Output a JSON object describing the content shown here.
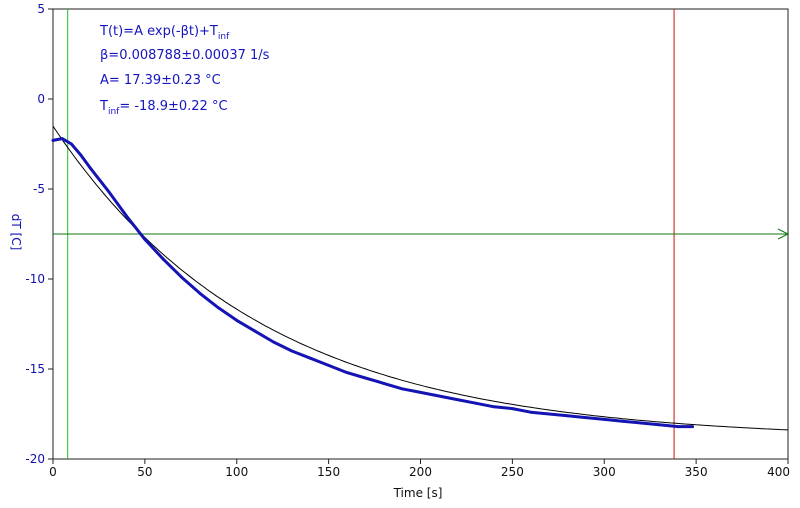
{
  "chart_data": {
    "type": "line",
    "xlabel": "Time [s]",
    "ylabel": "dT [C]",
    "xlim": [
      0,
      400
    ],
    "ylim": [
      -20,
      5
    ],
    "x_ticks": [
      0,
      50,
      100,
      150,
      200,
      250,
      300,
      350,
      400
    ],
    "y_ticks": [
      5,
      0,
      -5,
      -10,
      -15,
      -20
    ],
    "grid": false,
    "legend": "none",
    "annotations": {
      "model_main": "T(t)=A exp(-βt)+T",
      "model_sub": "inf",
      "beta": "β=0.008788±0.00037 1/s",
      "amp": "A= 17.39±0.23 °C",
      "tinf_main": "T",
      "tinf_sub": "inf",
      "tinf_val": "= -18.9±0.22 °C"
    },
    "fit": {
      "A": 17.39,
      "beta": 0.008788,
      "T_inf": -18.9
    },
    "series": [
      {
        "kind": "measured",
        "color": "#1414b4",
        "x": [
          0,
          5,
          10,
          15,
          20,
          30,
          40,
          50,
          60,
          70,
          80,
          90,
          100,
          110,
          120,
          130,
          140,
          150,
          160,
          170,
          180,
          190,
          200,
          210,
          220,
          230,
          240,
          250,
          260,
          270,
          280,
          290,
          300,
          310,
          320,
          330,
          340,
          345,
          348
        ],
        "y": [
          -2.3,
          -2.2,
          -2.5,
          -3.1,
          -3.8,
          -5.1,
          -6.5,
          -7.8,
          -8.9,
          -9.9,
          -10.8,
          -11.6,
          -12.3,
          -12.9,
          -13.5,
          -14.0,
          -14.4,
          -14.8,
          -15.2,
          -15.5,
          -15.8,
          -16.1,
          -16.3,
          -16.5,
          -16.7,
          -16.9,
          -17.1,
          -17.2,
          -17.4,
          -17.5,
          -17.6,
          -17.7,
          -17.8,
          -17.9,
          -18.0,
          -18.1,
          -18.2,
          -18.2,
          -18.2
        ]
      },
      {
        "kind": "fit",
        "color": "#000000"
      }
    ],
    "markers": {
      "cursor_start_x": 8,
      "cursor_end_x": 338,
      "threshold_y": -7.5,
      "colors": {
        "start": "#22bb22",
        "end": "#cc1111",
        "threshold": "#117711"
      }
    }
  }
}
